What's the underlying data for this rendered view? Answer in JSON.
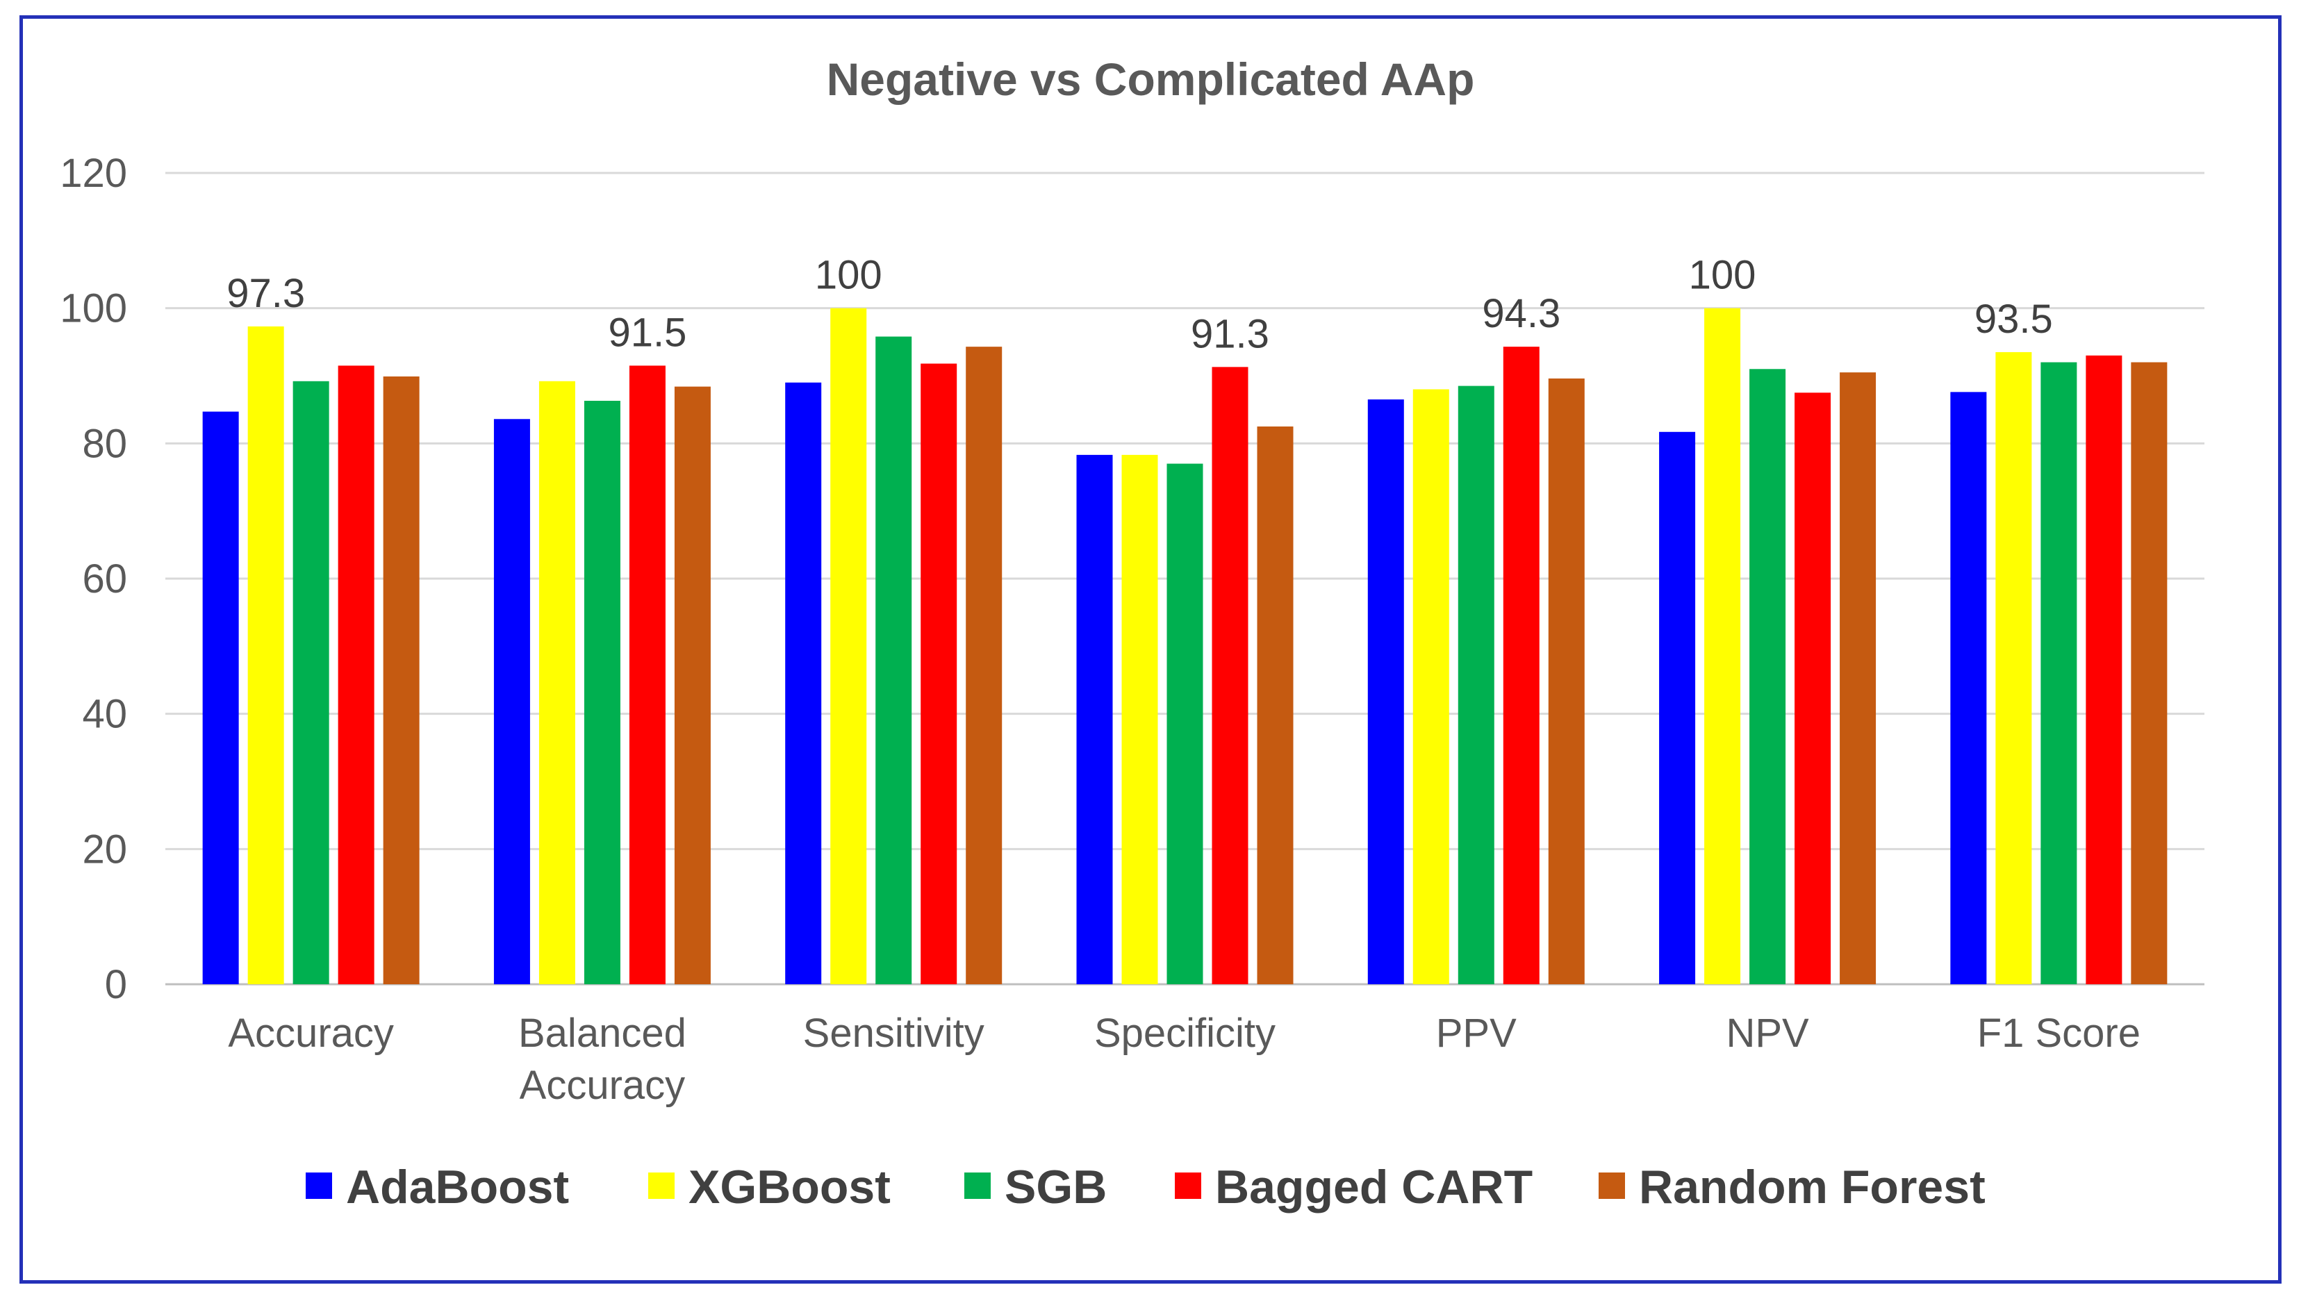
{
  "chart_data": {
    "type": "bar",
    "title": "Negative vs Complicated AAp",
    "categories": [
      [
        "Accuracy"
      ],
      [
        "Balanced",
        "Accuracy"
      ],
      [
        "Sensitivity"
      ],
      [
        "Specificity"
      ],
      [
        "PPV"
      ],
      [
        "NPV"
      ],
      [
        "F1 Score"
      ]
    ],
    "series": [
      {
        "name": "AdaBoost",
        "color": "#0000ff",
        "values": [
          84.7,
          83.6,
          89.0,
          78.3,
          86.5,
          81.7,
          87.6
        ]
      },
      {
        "name": "XGBoost",
        "color": "#ffff00",
        "values": [
          97.3,
          89.2,
          100,
          78.3,
          88.0,
          100,
          93.5
        ]
      },
      {
        "name": "SGB",
        "color": "#00b050",
        "values": [
          89.2,
          86.3,
          95.8,
          77.0,
          88.5,
          91.0,
          92.0
        ]
      },
      {
        "name": "Bagged CART",
        "color": "#ff0000",
        "values": [
          91.5,
          91.5,
          91.8,
          91.3,
          94.3,
          87.5,
          93.0
        ]
      },
      {
        "name": "Random Forest",
        "color": "#c55a11",
        "values": [
          89.9,
          88.4,
          94.3,
          82.5,
          89.6,
          90.5,
          92.0
        ]
      }
    ],
    "data_labels": [
      {
        "category_index": 0,
        "series_index": 1,
        "text": "97.3"
      },
      {
        "category_index": 1,
        "series_index": 3,
        "text": "91.5"
      },
      {
        "category_index": 2,
        "series_index": 1,
        "text": "100"
      },
      {
        "category_index": 3,
        "series_index": 3,
        "text": "91.3"
      },
      {
        "category_index": 4,
        "series_index": 3,
        "text": "94.3"
      },
      {
        "category_index": 5,
        "series_index": 1,
        "text": "100"
      },
      {
        "category_index": 6,
        "series_index": 1,
        "text": "93.5"
      }
    ],
    "ylim": [
      0,
      120
    ],
    "yticks": [
      0,
      20,
      40,
      60,
      80,
      100,
      120
    ],
    "xlabel": "",
    "ylabel": "",
    "grid": true,
    "legend_position": "bottom"
  }
}
